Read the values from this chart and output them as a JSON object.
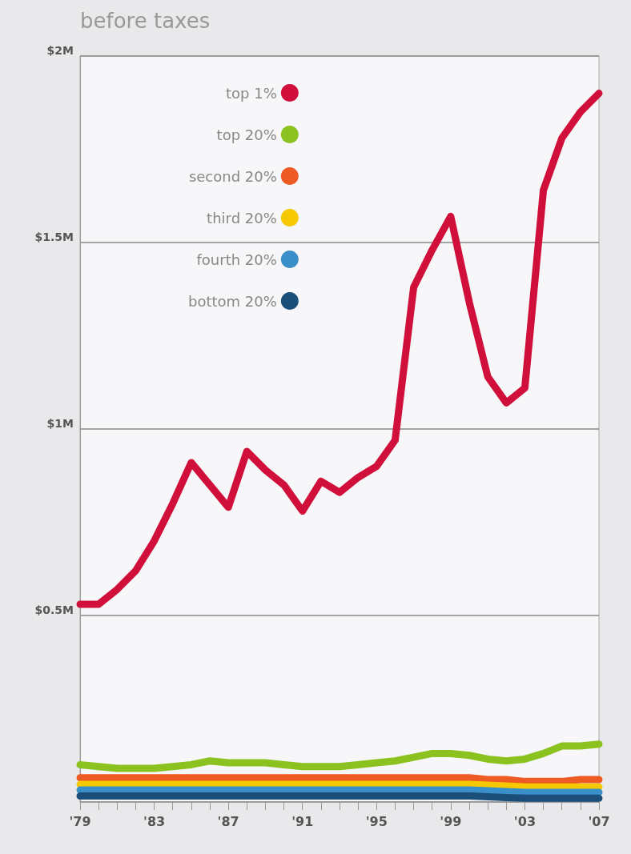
{
  "chart_data": {
    "type": "line",
    "subtitle": "before taxes",
    "categories": [
      "'79",
      null,
      null,
      null,
      "'83",
      null,
      null,
      null,
      "'87",
      null,
      null,
      null,
      "'91",
      null,
      null,
      null,
      "'95",
      null,
      null,
      null,
      "'99",
      null,
      null,
      null,
      "'03",
      null,
      null,
      null,
      "'07"
    ],
    "series": [
      {
        "name": "top 1%",
        "color": "#d0103a",
        "values": [
          0.53,
          0.53,
          0.57,
          0.62,
          0.7,
          0.8,
          0.91,
          0.85,
          0.79,
          0.94,
          0.89,
          0.85,
          0.78,
          0.86,
          0.83,
          0.87,
          0.9,
          0.97,
          1.38,
          1.48,
          1.57,
          1.34,
          1.14,
          1.07,
          1.11,
          1.64,
          1.78,
          1.85,
          1.9
        ]
      },
      {
        "name": "top 20%",
        "color": "#8cc21f",
        "values": [
          0.1,
          0.095,
          0.09,
          0.09,
          0.09,
          0.095,
          0.1,
          0.11,
          0.105,
          0.105,
          0.105,
          0.1,
          0.095,
          0.095,
          0.095,
          0.1,
          0.105,
          0.11,
          0.12,
          0.13,
          0.13,
          0.125,
          0.115,
          0.11,
          0.115,
          0.13,
          0.15,
          0.15,
          0.155
        ]
      },
      {
        "name": "second 20%",
        "color": "#ee5a24",
        "values": [
          0.065,
          0.065,
          0.065,
          0.065,
          0.065,
          0.065,
          0.065,
          0.065,
          0.065,
          0.065,
          0.065,
          0.065,
          0.065,
          0.065,
          0.065,
          0.065,
          0.065,
          0.065,
          0.065,
          0.065,
          0.065,
          0.065,
          0.06,
          0.06,
          0.055,
          0.055,
          0.055,
          0.06,
          0.06
        ]
      },
      {
        "name": "third 20%",
        "color": "#f5c800",
        "values": [
          0.047,
          0.047,
          0.047,
          0.047,
          0.047,
          0.047,
          0.047,
          0.047,
          0.047,
          0.047,
          0.047,
          0.047,
          0.047,
          0.047,
          0.047,
          0.047,
          0.047,
          0.047,
          0.047,
          0.047,
          0.047,
          0.047,
          0.045,
          0.043,
          0.04,
          0.04,
          0.04,
          0.04,
          0.04
        ]
      },
      {
        "name": "fourth 20%",
        "color": "#3a8fc8",
        "values": [
          0.032,
          0.032,
          0.032,
          0.032,
          0.032,
          0.032,
          0.032,
          0.032,
          0.032,
          0.032,
          0.032,
          0.032,
          0.032,
          0.032,
          0.032,
          0.032,
          0.032,
          0.032,
          0.032,
          0.032,
          0.032,
          0.032,
          0.03,
          0.028,
          0.026,
          0.026,
          0.026,
          0.026,
          0.026
        ]
      },
      {
        "name": "bottom 20%",
        "color": "#1b4f7a",
        "values": [
          0.016,
          0.016,
          0.016,
          0.016,
          0.016,
          0.016,
          0.016,
          0.016,
          0.016,
          0.016,
          0.016,
          0.016,
          0.016,
          0.016,
          0.016,
          0.016,
          0.016,
          0.016,
          0.016,
          0.016,
          0.016,
          0.016,
          0.014,
          0.012,
          0.01,
          0.01,
          0.01,
          0.01,
          0.01
        ]
      }
    ],
    "ylim": [
      0,
      2
    ],
    "yticks": [
      {
        "value": 0,
        "label": null
      },
      {
        "value": 0.5,
        "label": "$0.5M"
      },
      {
        "value": 1,
        "label": "$1M"
      },
      {
        "value": 1.5,
        "label": "$1.5M"
      },
      {
        "value": 2,
        "label": "$2M"
      }
    ],
    "grid": "y",
    "legend": "top",
    "marker": "none",
    "line_style": "solid"
  }
}
